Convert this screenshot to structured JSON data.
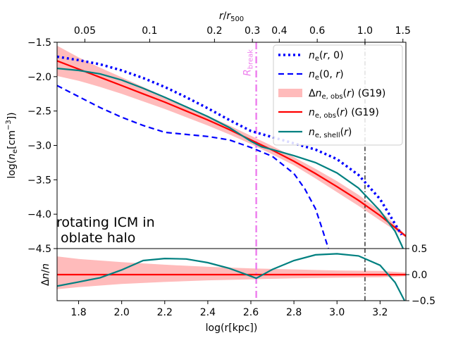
{
  "chart_data": [
    {
      "type": "line",
      "panel": "main",
      "xlabel": "log(r[kpc])",
      "ylabel": "log(n_e [cm^-3])",
      "top_axis_label": "r/r500",
      "xlim": [
        1.7,
        3.32
      ],
      "ylim": [
        -4.5,
        -1.5
      ],
      "yticks": [
        "-4.5",
        "-4.0",
        "-3.5",
        "-3.0",
        "-2.5",
        "-2.0",
        "-1.5"
      ],
      "top_ticks": [
        {
          "label": "0.05",
          "value": 0.05
        },
        {
          "label": "0.1",
          "value": 0.1
        },
        {
          "label": "0.2",
          "value": 0.2
        },
        {
          "label": "0.3",
          "value": 0.3
        },
        {
          "label": "0.4",
          "value": 0.4
        },
        {
          "label": "0.6",
          "value": 0.6
        },
        {
          "label": "1.0",
          "value": 1.0
        },
        {
          "label": "1.5",
          "value": 1.5
        }
      ],
      "r500_log_kpc": 3.13,
      "annotation": [
        "rotating ICM in",
        "oblate halo"
      ],
      "break_label": "R_break",
      "break_x": 2.625,
      "r500_line_x": 3.13,
      "legend": [
        {
          "label": "n_e(r,0)",
          "series": "ne_r0"
        },
        {
          "label": "n_e(0,r)",
          "series": "ne_0r"
        },
        {
          "label": "Δn_e,obs(r) (G19)",
          "series": "band"
        },
        {
          "label": "n_e,obs(r) (G19)",
          "series": "ne_obs"
        },
        {
          "label": "n_e,shell(r)",
          "series": "ne_shell"
        }
      ],
      "series": [
        {
          "name": "ne_r0",
          "color": "#0000ff",
          "style": "dotted",
          "x": [
            1.7,
            1.8,
            1.9,
            2.0,
            2.1,
            2.2,
            2.3,
            2.4,
            2.5,
            2.6,
            2.7,
            2.8,
            2.9,
            3.0,
            3.1,
            3.2,
            3.3
          ],
          "y": [
            -1.71,
            -1.76,
            -1.82,
            -1.91,
            -2.02,
            -2.15,
            -2.3,
            -2.46,
            -2.63,
            -2.79,
            -2.88,
            -2.97,
            -3.06,
            -3.2,
            -3.43,
            -3.78,
            -4.3
          ]
        },
        {
          "name": "ne_0r",
          "color": "#0000ff",
          "style": "dashed",
          "x": [
            1.7,
            1.8,
            1.9,
            2.0,
            2.1,
            2.2,
            2.3,
            2.4,
            2.5,
            2.6,
            2.7,
            2.8,
            2.85,
            2.9,
            2.93,
            2.96
          ],
          "y": [
            -2.13,
            -2.29,
            -2.45,
            -2.59,
            -2.71,
            -2.81,
            -2.84,
            -2.87,
            -2.92,
            -3.03,
            -3.16,
            -3.41,
            -3.63,
            -3.92,
            -4.2,
            -4.5
          ]
        },
        {
          "name": "ne_obs",
          "color": "#ff0000",
          "style": "solid",
          "x": [
            1.7,
            1.8,
            1.9,
            2.0,
            2.1,
            2.2,
            2.3,
            2.4,
            2.5,
            2.6,
            2.7,
            2.8,
            2.9,
            3.0,
            3.1,
            3.2,
            3.32
          ],
          "y": [
            -1.77,
            -1.89,
            -2.01,
            -2.13,
            -2.25,
            -2.37,
            -2.5,
            -2.63,
            -2.77,
            -2.92,
            -3.07,
            -3.23,
            -3.41,
            -3.6,
            -3.8,
            -4.02,
            -4.32
          ]
        },
        {
          "name": "ne_shell",
          "color": "#008080",
          "style": "solid",
          "x": [
            1.7,
            1.8,
            1.9,
            2.0,
            2.1,
            2.2,
            2.3,
            2.4,
            2.5,
            2.6,
            2.65,
            2.7,
            2.8,
            2.9,
            3.0,
            3.1,
            3.2,
            3.27,
            3.3,
            3.32
          ],
          "y": [
            -1.88,
            -1.91,
            -1.96,
            -2.05,
            -2.17,
            -2.3,
            -2.44,
            -2.58,
            -2.74,
            -2.94,
            -3.02,
            -3.06,
            -3.15,
            -3.25,
            -3.4,
            -3.62,
            -3.95,
            -4.25,
            -4.45,
            -4.6
          ]
        },
        {
          "name": "band",
          "color": "#ffaaaa",
          "style": "fill",
          "x": [
            1.7,
            1.8,
            1.9,
            2.0,
            2.1,
            2.2,
            2.3,
            2.4,
            2.5,
            2.6,
            2.7,
            2.8,
            2.9,
            3.0,
            3.1,
            3.2,
            3.32
          ],
          "upper": [
            -1.55,
            -1.72,
            -1.87,
            -2.01,
            -2.15,
            -2.29,
            -2.43,
            -2.57,
            -2.71,
            -2.86,
            -3.01,
            -3.17,
            -3.34,
            -3.52,
            -3.72,
            -3.95,
            -4.3
          ],
          "lower": [
            -1.99,
            -2.06,
            -2.15,
            -2.25,
            -2.36,
            -2.47,
            -2.59,
            -2.71,
            -2.84,
            -2.98,
            -3.13,
            -3.29,
            -3.48,
            -3.68,
            -3.88,
            -4.09,
            -4.34
          ]
        }
      ]
    },
    {
      "type": "line",
      "panel": "residual",
      "xlabel": "log(r[kpc])",
      "ylabel": "Δn/n",
      "xlim": [
        1.7,
        3.32
      ],
      "ylim": [
        -0.5,
        0.5
      ],
      "xticks": [
        "1.8",
        "2.0",
        "2.2",
        "2.4",
        "2.6",
        "2.8",
        "3.0",
        "3.2"
      ],
      "yticks": [
        "-0.5",
        "0.0",
        "0.5"
      ],
      "series": [
        {
          "name": "residual_obs",
          "color": "#ff0000",
          "style": "solid",
          "x": [
            1.7,
            3.32
          ],
          "y": [
            0.0,
            0.0
          ]
        },
        {
          "name": "residual_shell",
          "color": "#008080",
          "style": "solid",
          "x": [
            1.7,
            1.8,
            1.9,
            2.0,
            2.1,
            2.2,
            2.3,
            2.4,
            2.5,
            2.6,
            2.625,
            2.7,
            2.8,
            2.9,
            3.0,
            3.1,
            3.2,
            3.27,
            3.32
          ],
          "y": [
            -0.22,
            -0.14,
            -0.06,
            0.09,
            0.27,
            0.31,
            0.3,
            0.23,
            0.12,
            -0.03,
            -0.07,
            0.1,
            0.27,
            0.38,
            0.4,
            0.36,
            0.18,
            -0.15,
            -0.55
          ]
        },
        {
          "name": "residual_band",
          "color": "#ffaaaa",
          "style": "fill",
          "x": [
            1.7,
            1.8,
            2.0,
            2.2,
            2.4,
            2.6,
            2.8,
            3.0,
            3.2,
            3.32
          ],
          "upper": [
            0.35,
            0.3,
            0.24,
            0.19,
            0.15,
            0.12,
            0.1,
            0.08,
            0.07,
            0.04
          ],
          "lower": [
            -0.28,
            -0.24,
            -0.18,
            -0.14,
            -0.11,
            -0.09,
            -0.07,
            -0.06,
            -0.05,
            -0.03
          ]
        }
      ]
    }
  ]
}
